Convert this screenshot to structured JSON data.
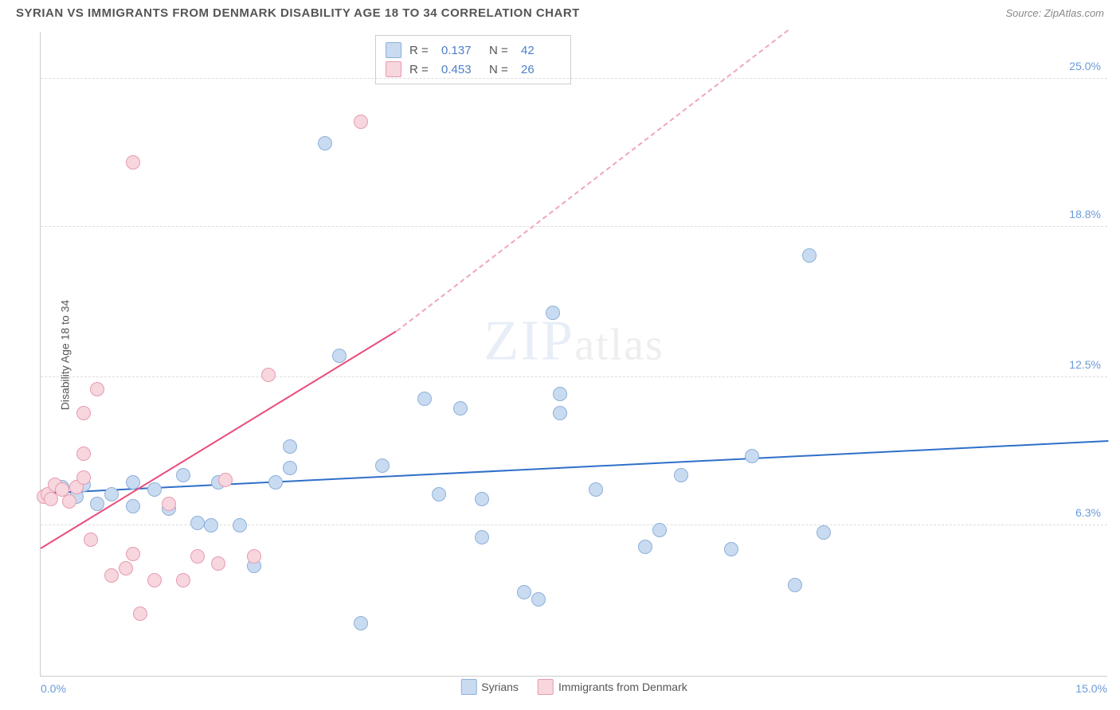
{
  "header": {
    "title": "SYRIAN VS IMMIGRANTS FROM DENMARK DISABILITY AGE 18 TO 34 CORRELATION CHART",
    "source": "Source: ZipAtlas.com"
  },
  "chart": {
    "type": "scatter",
    "ylabel": "Disability Age 18 to 34",
    "watermark_primary": "ZIP",
    "watermark_secondary": "atlas",
    "background_color": "#ffffff",
    "grid_color": "#dddddd",
    "axis_color": "#cccccc",
    "xlim": [
      0.0,
      15.0
    ],
    "ylim": [
      0.0,
      27.0
    ],
    "xticks": [
      {
        "v": 0.0,
        "label": "0.0%"
      },
      {
        "v": 15.0,
        "label": "15.0%"
      }
    ],
    "yticks": [
      {
        "v": 6.3,
        "label": "6.3%"
      },
      {
        "v": 12.5,
        "label": "12.5%"
      },
      {
        "v": 18.8,
        "label": "18.8%"
      },
      {
        "v": 25.0,
        "label": "25.0%"
      }
    ],
    "series": [
      {
        "name": "Syrians",
        "color_fill": "#c9dbf0",
        "color_border": "#8db0db",
        "marker_size": 18,
        "R": "0.137",
        "N": "42",
        "trend": {
          "x1": 0.0,
          "y1": 7.6,
          "x2": 15.0,
          "y2": 9.8,
          "color": "#2f6fc9",
          "width": 2,
          "dashed": false
        },
        "points": [
          [
            0.1,
            7.5
          ],
          [
            0.3,
            7.9
          ],
          [
            0.5,
            7.5
          ],
          [
            0.6,
            8.0
          ],
          [
            0.8,
            7.2
          ],
          [
            1.0,
            7.6
          ],
          [
            1.3,
            7.1
          ],
          [
            1.3,
            8.1
          ],
          [
            1.6,
            7.8
          ],
          [
            1.8,
            7.0
          ],
          [
            2.0,
            8.4
          ],
          [
            2.2,
            6.4
          ],
          [
            2.4,
            6.3
          ],
          [
            2.5,
            8.1
          ],
          [
            2.8,
            6.3
          ],
          [
            3.0,
            4.6
          ],
          [
            3.3,
            8.1
          ],
          [
            3.5,
            9.6
          ],
          [
            3.5,
            8.7
          ],
          [
            4.0,
            22.3
          ],
          [
            4.2,
            13.4
          ],
          [
            4.5,
            2.2
          ],
          [
            4.8,
            8.8
          ],
          [
            5.4,
            11.6
          ],
          [
            5.6,
            7.6
          ],
          [
            5.9,
            11.2
          ],
          [
            6.2,
            7.4
          ],
          [
            6.2,
            5.8
          ],
          [
            6.8,
            3.5
          ],
          [
            7.0,
            3.2
          ],
          [
            7.2,
            15.2
          ],
          [
            7.3,
            11.8
          ],
          [
            7.3,
            11.0
          ],
          [
            7.8,
            7.8
          ],
          [
            8.5,
            5.4
          ],
          [
            8.7,
            6.1
          ],
          [
            9.0,
            8.4
          ],
          [
            9.7,
            5.3
          ],
          [
            10.0,
            9.2
          ],
          [
            10.6,
            3.8
          ],
          [
            10.8,
            17.6
          ],
          [
            11.0,
            6.0
          ]
        ]
      },
      {
        "name": "Immigrants from Denmark",
        "color_fill": "#f7d6de",
        "color_border": "#e79bb0",
        "marker_size": 18,
        "R": "0.453",
        "N": "26",
        "trend": {
          "x1": 0.0,
          "y1": 5.3,
          "x2": 5.0,
          "y2": 14.4,
          "color": "#e94d7a",
          "width": 2,
          "dashed": false
        },
        "trend_ext": {
          "x1": 5.0,
          "y1": 14.4,
          "x2": 10.5,
          "y2": 27.0,
          "color": "#efa6bb",
          "width": 2,
          "dashed": true
        },
        "points": [
          [
            0.05,
            7.5
          ],
          [
            0.1,
            7.6
          ],
          [
            0.15,
            7.4
          ],
          [
            0.2,
            8.0
          ],
          [
            0.3,
            7.8
          ],
          [
            0.4,
            7.3
          ],
          [
            0.5,
            7.9
          ],
          [
            0.6,
            8.3
          ],
          [
            0.6,
            9.3
          ],
          [
            0.6,
            11.0
          ],
          [
            0.7,
            5.7
          ],
          [
            0.8,
            12.0
          ],
          [
            1.0,
            4.2
          ],
          [
            1.2,
            4.5
          ],
          [
            1.3,
            21.5
          ],
          [
            1.3,
            5.1
          ],
          [
            1.4,
            2.6
          ],
          [
            1.6,
            4.0
          ],
          [
            1.8,
            7.2
          ],
          [
            2.0,
            4.0
          ],
          [
            2.2,
            5.0
          ],
          [
            2.5,
            4.7
          ],
          [
            2.6,
            8.2
          ],
          [
            3.0,
            5.0
          ],
          [
            3.2,
            12.6
          ],
          [
            4.5,
            23.2
          ]
        ]
      }
    ],
    "stats_labels": {
      "R": "R  =",
      "N": "N  ="
    },
    "bottom_legend": [
      {
        "label": "Syrians",
        "fill": "#c9dbf0",
        "border": "#8db0db"
      },
      {
        "label": "Immigrants from Denmark",
        "fill": "#f7d6de",
        "border": "#e79bb0"
      }
    ]
  }
}
